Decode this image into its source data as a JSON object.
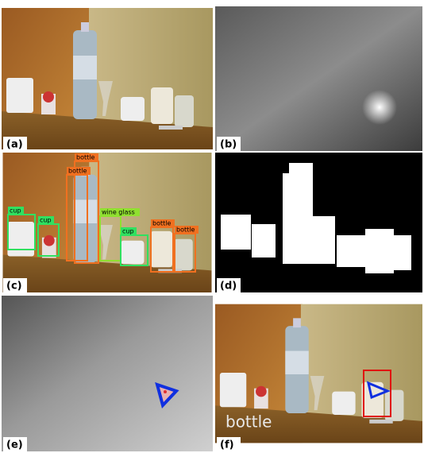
{
  "panel_labels": [
    "(a)",
    "(b)",
    "(c)",
    "(d)",
    "(e)",
    "(f)"
  ],
  "detections": [
    "bottle",
    "bottle",
    "cup",
    "cup",
    "wine glass",
    "cup",
    "bottle",
    "bottle"
  ],
  "panel_f_text": "bottle"
}
